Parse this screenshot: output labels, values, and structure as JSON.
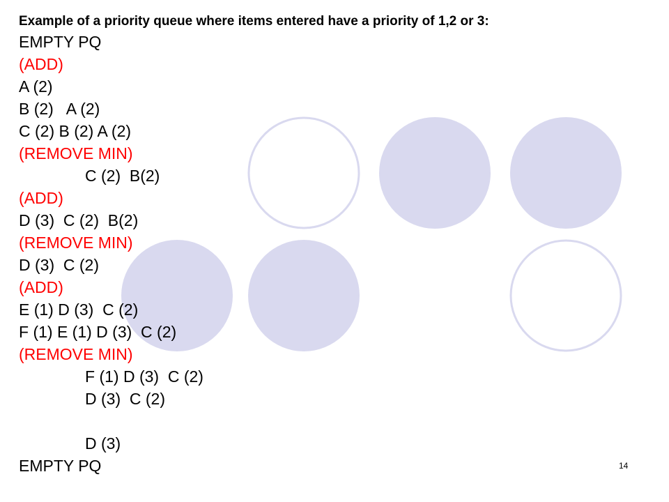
{
  "title": "Example of a priority queue where items entered have a priority of 1,2 or 3:",
  "lines": [
    {
      "text": "EMPTY PQ",
      "color": "#000000"
    },
    {
      "text": "(ADD)",
      "color": "#ff0000"
    },
    {
      "text": "A (2)",
      "color": "#000000"
    },
    {
      "text": "B (2)   A (2)",
      "color": "#000000"
    },
    {
      "text": "C (2) B (2) A (2)",
      "color": "#000000"
    },
    {
      "text": "(REMOVE MIN)",
      "color": "#ff0000"
    },
    {
      "text": "C (2)  B(2)",
      "color": "#000000"
    },
    {
      "text": "(ADD)",
      "color": "#ff0000"
    },
    {
      "text": "D (3)  C (2)  B(2)",
      "color": "#000000"
    },
    {
      "text": "(REMOVE MIN)",
      "color": "#ff0000"
    },
    {
      "text": "D (3)  C (2)",
      "color": "#000000"
    },
    {
      "text": "(ADD)",
      "color": "#ff0000"
    },
    {
      "text": "E (1) D (3)  C (2)",
      "color": "#000000"
    },
    {
      "text": "F (1) E (1) D (3)  C (2)",
      "color": "#000000"
    },
    {
      "text": "(REMOVE MIN)",
      "color": "#ff0000"
    },
    {
      "text": "F (1) D (3)  C (2)",
      "color": "#000000"
    },
    {
      "text": "D (3)  C (2)",
      "color": "#000000"
    },
    {
      "text": "D (3)",
      "color": "#000000"
    },
    {
      "text": "EMPTY PQ",
      "color": "#000000"
    }
  ],
  "slide_number": "14"
}
